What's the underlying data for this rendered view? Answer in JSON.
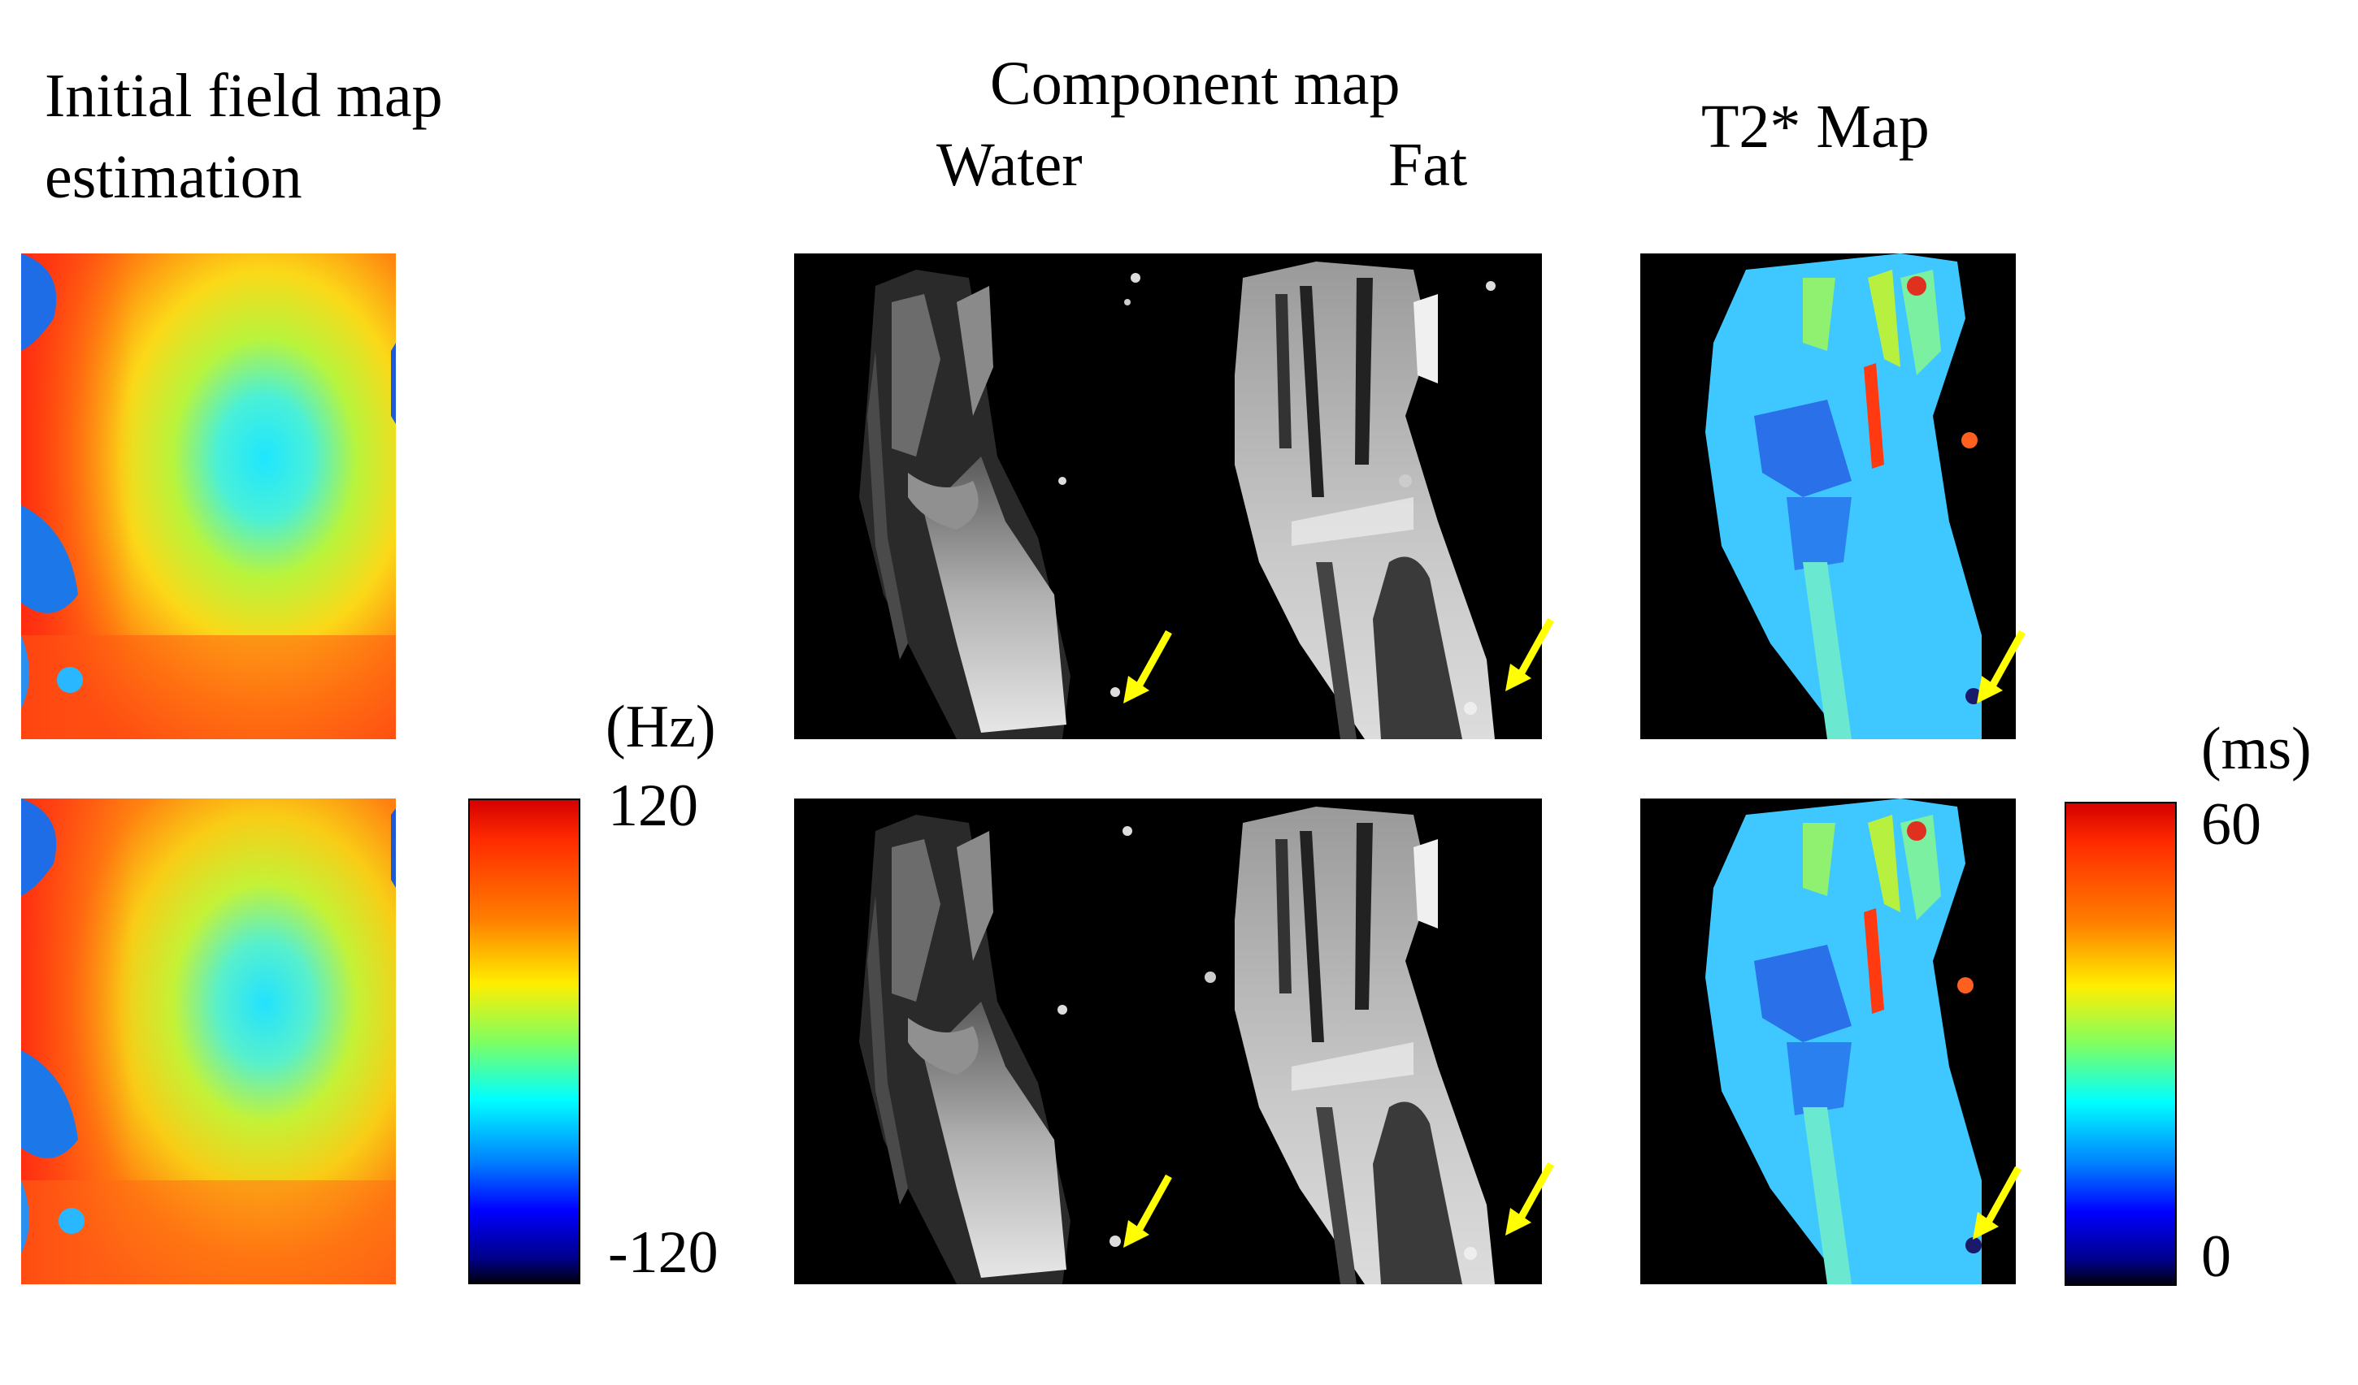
{
  "headings": {
    "field_map_line1": "Initial field map",
    "field_map_line2": "estimation",
    "component_map": "Component map",
    "water": "Water",
    "fat": "Fat",
    "t2star_map": "T2* Map"
  },
  "field_map_colorbar": {
    "unit": "(Hz)",
    "max_label": "120",
    "min_label": "-120",
    "colormap": "jet"
  },
  "t2star_colorbar": {
    "unit": "(ms)",
    "max_label": "60",
    "min_label": "0",
    "colormap": "jet"
  },
  "rows": 2,
  "arrow_color": "#ffff00",
  "colors": {
    "field_map_background": "#ff4a16",
    "mri_background": "#000000",
    "t2star_tissue": "#3fc8ff"
  }
}
